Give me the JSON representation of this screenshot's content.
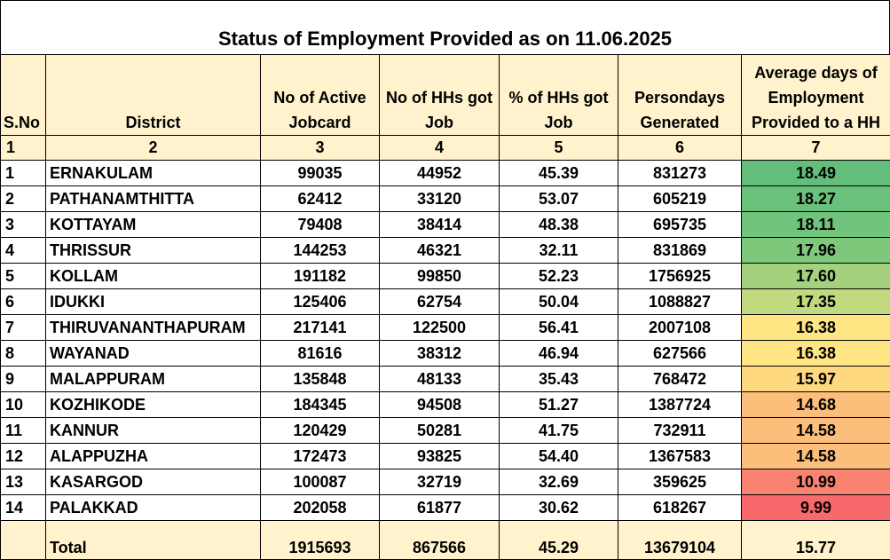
{
  "title": "Status of Employment Provided as on 11.06.2025",
  "headers": [
    "S.No",
    "District",
    "No of Active Jobcard",
    "No of HHs got Job",
    "% of HHs got Job",
    "Persondays Generated",
    "Average days of Employment Provided to a HH"
  ],
  "column_numbers": [
    "1",
    "2",
    "3",
    "4",
    "5",
    "6",
    "7"
  ],
  "rows": [
    {
      "sno": "1",
      "district": "ERNAKULAM",
      "active": "99035",
      "hhs": "44952",
      "pct": "45.39",
      "persondays": "831273",
      "avg": "18.49",
      "avg_color": "#63be7b"
    },
    {
      "sno": "2",
      "district": "PATHANAMTHITTA",
      "active": "62412",
      "hhs": "33120",
      "pct": "53.07",
      "persondays": "605219",
      "avg": "18.27",
      "avg_color": "#6ac17c"
    },
    {
      "sno": "3",
      "district": "KOTTAYAM",
      "active": "79408",
      "hhs": "38414",
      "pct": "48.38",
      "persondays": "695735",
      "avg": "18.11",
      "avg_color": "#71c47c"
    },
    {
      "sno": "4",
      "district": "THRISSUR",
      "active": "144253",
      "hhs": "46321",
      "pct": "32.11",
      "persondays": "831869",
      "avg": "17.96",
      "avg_color": "#7ec87c"
    },
    {
      "sno": "5",
      "district": "KOLLAM",
      "active": "191182",
      "hhs": "99850",
      "pct": "52.23",
      "persondays": "1756925",
      "avg": "17.60",
      "avg_color": "#a4d17e"
    },
    {
      "sno": "6",
      "district": "IDUKKI",
      "active": "125406",
      "hhs": "62754",
      "pct": "50.04",
      "persondays": "1088827",
      "avg": "17.35",
      "avg_color": "#c1d97f"
    },
    {
      "sno": "7",
      "district": "THIRUVANANTHAPURAM",
      "active": "217141",
      "hhs": "122500",
      "pct": "56.41",
      "persondays": "2007108",
      "avg": "16.38",
      "avg_color": "#ffe583"
    },
    {
      "sno": "8",
      "district": "WAYANAD",
      "active": "81616",
      "hhs": "38312",
      "pct": "46.94",
      "persondays": "627566",
      "avg": "16.38",
      "avg_color": "#ffe583"
    },
    {
      "sno": "9",
      "district": "MALAPPURAM",
      "active": "135848",
      "hhs": "48133",
      "pct": "35.43",
      "persondays": "768472",
      "avg": "15.97",
      "avg_color": "#fed980"
    },
    {
      "sno": "10",
      "district": "KOZHIKODE",
      "active": "184345",
      "hhs": "94508",
      "pct": "51.27",
      "persondays": "1387724",
      "avg": "14.68",
      "avg_color": "#fcbf7b"
    },
    {
      "sno": "11",
      "district": "KANNUR",
      "active": "120429",
      "hhs": "50281",
      "pct": "41.75",
      "persondays": "732911",
      "avg": "14.58",
      "avg_color": "#fcbe7b"
    },
    {
      "sno": "12",
      "district": "ALAPPUZHA",
      "active": "172473",
      "hhs": "93825",
      "pct": "54.40",
      "persondays": "1367583",
      "avg": "14.58",
      "avg_color": "#fcbe7b"
    },
    {
      "sno": "13",
      "district": "KASARGOD",
      "active": "100087",
      "hhs": "32719",
      "pct": "32.69",
      "persondays": "359625",
      "avg": "10.99",
      "avg_color": "#f98370"
    },
    {
      "sno": "14",
      "district": "PALAKKAD",
      "active": "202058",
      "hhs": "61877",
      "pct": "30.62",
      "persondays": "618267",
      "avg": "9.99",
      "avg_color": "#f8696b"
    }
  ],
  "total": {
    "sno": "",
    "district": "Total",
    "active": "1915693",
    "hhs": "867566",
    "pct": "45.29",
    "persondays": "13679104",
    "avg": "15.77"
  }
}
